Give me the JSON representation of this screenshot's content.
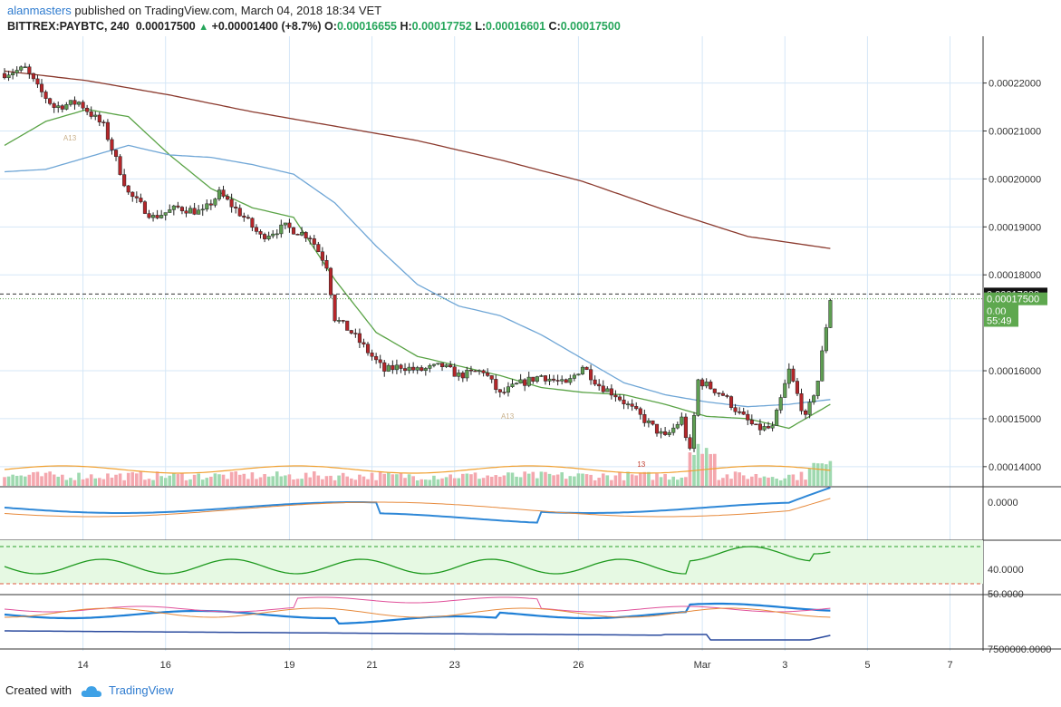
{
  "header": {
    "user": "alanmasters",
    "published": " published on TradingView.com, March 04, 2018 18:34 VET",
    "symbol": "BITTREX:PAYBTC, 240",
    "last": "0.00017500",
    "change": "+0.00001400 (+8.7%)",
    "o_label": "O:",
    "o": "0.00016655",
    "h_label": "H:",
    "h": "0.00017752",
    "l_label": "L:",
    "l": "0.00016601",
    "c_label": "C:",
    "c": "0.00017500"
  },
  "footer": {
    "created": "Created with",
    "brand": "TradingView"
  },
  "colors": {
    "up": "#5e9e52",
    "down": "#b5262a",
    "ma_green": "#5aa346",
    "ma_blue": "#6fa6d6",
    "ma_brown": "#8b3a2e",
    "vol_up": "#9fd9b0",
    "vol_down": "#f4a7ae"
  },
  "chart_data": {
    "type": "candlestick",
    "price_axis": {
      "labels": [
        "0.00022000",
        "0.00021000",
        "0.00020000",
        "0.00019000",
        "0.00018000",
        "0.00016000",
        "0.00015000",
        "0.00014000"
      ],
      "values": [
        0.00022,
        0.00021,
        0.0002,
        0.00019,
        0.00018,
        0.00016,
        0.00015,
        0.00014
      ],
      "range": [
        0.000136,
        0.000229
      ]
    },
    "price_tags": [
      {
        "label": "0.00017600",
        "value": 0.000176,
        "style": "dark"
      },
      {
        "label": "0.00017500",
        "value": 0.000175,
        "style": "green"
      },
      {
        "label": "0.00",
        "value": 0.0001725,
        "style": "green"
      },
      {
        "label": "55:49",
        "value": 0.0001705,
        "style": "green"
      }
    ],
    "x_axis": {
      "labels": [
        "14",
        "16",
        "19",
        "21",
        "23",
        "26",
        "Mar",
        "3",
        "5",
        "7"
      ],
      "index": [
        19,
        39,
        69,
        89,
        109,
        139,
        169,
        189,
        209,
        229
      ],
      "range": [
        0,
        237
      ]
    },
    "ma_green_key": [
      [
        0,
        0.000207
      ],
      [
        10,
        0.000212
      ],
      [
        20,
        0.0002145
      ],
      [
        30,
        0.000213
      ],
      [
        40,
        0.000205
      ],
      [
        50,
        0.000198
      ],
      [
        60,
        0.000194
      ],
      [
        70,
        0.000192
      ],
      [
        80,
        0.000179
      ],
      [
        90,
        0.000168
      ],
      [
        100,
        0.000163
      ],
      [
        110,
        0.000161
      ],
      [
        120,
        0.000159
      ],
      [
        130,
        0.0001565
      ],
      [
        140,
        0.0001555
      ],
      [
        150,
        0.000155
      ],
      [
        160,
        0.000153
      ],
      [
        170,
        0.0001505
      ],
      [
        180,
        0.00015
      ],
      [
        190,
        0.000148
      ],
      [
        200,
        0.000153
      ]
    ],
    "ma_blue_key": [
      [
        0,
        0.0002015
      ],
      [
        10,
        0.000202
      ],
      [
        20,
        0.0002045
      ],
      [
        30,
        0.000207
      ],
      [
        40,
        0.000205
      ],
      [
        50,
        0.0002045
      ],
      [
        60,
        0.000203
      ],
      [
        70,
        0.000201
      ],
      [
        80,
        0.000195
      ],
      [
        90,
        0.000186
      ],
      [
        100,
        0.000178
      ],
      [
        110,
        0.0001735
      ],
      [
        120,
        0.0001715
      ],
      [
        130,
        0.0001675
      ],
      [
        140,
        0.0001625
      ],
      [
        150,
        0.0001575
      ],
      [
        160,
        0.000155
      ],
      [
        170,
        0.0001535
      ],
      [
        180,
        0.0001525
      ],
      [
        190,
        0.000153
      ],
      [
        200,
        0.000154
      ]
    ],
    "ma_brown_key": [
      [
        0,
        0.0002225
      ],
      [
        20,
        0.0002205
      ],
      [
        40,
        0.0002175
      ],
      [
        60,
        0.000214
      ],
      [
        80,
        0.000211
      ],
      [
        100,
        0.000208
      ],
      [
        120,
        0.000204
      ],
      [
        140,
        0.0001995
      ],
      [
        160,
        0.0001935
      ],
      [
        180,
        0.000188
      ],
      [
        200,
        0.0001855
      ]
    ],
    "price_key": [
      [
        0,
        0.000222
      ],
      [
        5,
        0.000223
      ],
      [
        8,
        0.000219
      ],
      [
        12,
        0.000215
      ],
      [
        18,
        0.000216
      ],
      [
        24,
        0.000211
      ],
      [
        30,
        0.000197
      ],
      [
        36,
        0.000192
      ],
      [
        42,
        0.000194
      ],
      [
        48,
        0.000193
      ],
      [
        52,
        0.000197
      ],
      [
        58,
        0.000192
      ],
      [
        62,
        0.000188
      ],
      [
        68,
        0.00019
      ],
      [
        74,
        0.000188
      ],
      [
        78,
        0.000182
      ],
      [
        80,
        0.000171
      ],
      [
        84,
        0.000168
      ],
      [
        88,
        0.000164
      ],
      [
        92,
        0.00016
      ],
      [
        96,
        0.000161
      ],
      [
        100,
        0.00016
      ],
      [
        106,
        0.000161
      ],
      [
        110,
        0.000159
      ],
      [
        116,
        0.00016
      ],
      [
        120,
        0.000155
      ],
      [
        124,
        0.000157
      ],
      [
        130,
        0.000159
      ],
      [
        136,
        0.000157
      ],
      [
        140,
        0.000161
      ],
      [
        144,
        0.000157
      ],
      [
        148,
        0.000155
      ],
      [
        152,
        0.000152
      ],
      [
        156,
        0.000149
      ],
      [
        160,
        0.000146
      ],
      [
        164,
        0.00015
      ],
      [
        166,
        0.000143
      ],
      [
        168,
        0.000158
      ],
      [
        170,
        0.000157
      ],
      [
        174,
        0.000155
      ],
      [
        178,
        0.000151
      ],
      [
        182,
        0.000148
      ],
      [
        186,
        0.000148
      ],
      [
        190,
        0.00016
      ],
      [
        194,
        0.00015
      ],
      [
        197,
        0.000158
      ],
      [
        200,
        0.000175
      ]
    ],
    "oscillators": [
      {
        "name": "momentum",
        "labels": [
          "0.0000"
        ]
      },
      {
        "name": "rsi",
        "labels": [
          "40.0000"
        ]
      },
      {
        "name": "dmi",
        "labels": [
          "50.0000"
        ]
      },
      {
        "name": "obv",
        "labels": [
          "7500000.0000"
        ]
      }
    ],
    "td_annotations": [
      "A13",
      "A13",
      "13"
    ],
    "grid": true
  }
}
